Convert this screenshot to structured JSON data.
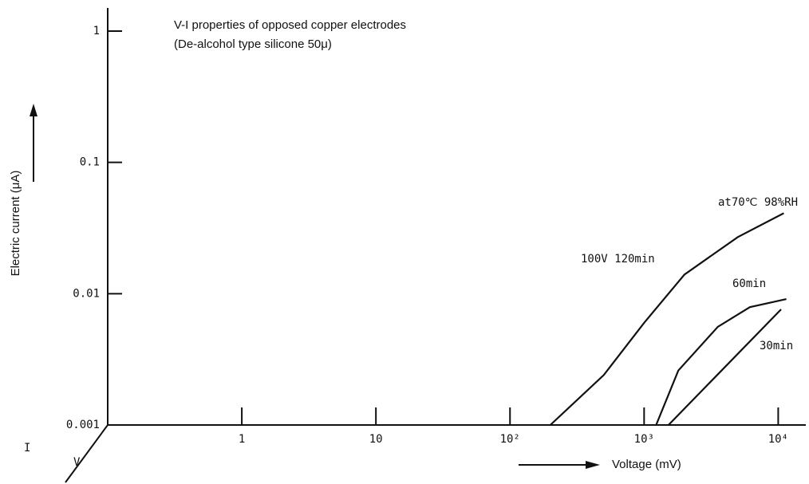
{
  "chart_data": {
    "type": "line",
    "title": "V-I properties of opposed copper electrodes",
    "subtitle": "(De-alcohol type silicone 50μ)",
    "y_label": "Electric current (μA)",
    "x_label": "Voltage (mV)",
    "annotations": [
      "at70℃ 98%RH",
      "I",
      "V"
    ],
    "xscale": "log",
    "yscale": "log",
    "xlim": [
      0.1,
      15000
    ],
    "ylim": [
      0.001,
      1.5
    ],
    "xticks": [
      1,
      10,
      {
        "value": 100,
        "label": "10²"
      },
      {
        "value": 1000,
        "label": "10³"
      },
      {
        "value": 10000,
        "label": "10⁴"
      }
    ],
    "yticks": [
      0.001,
      0.01,
      0.1,
      1
    ],
    "series": [
      {
        "name": "100V 120min",
        "color": "#111111",
        "x": [
          200,
          500,
          1000,
          2000,
          5000,
          11000
        ],
        "values": [
          0.001,
          0.0024,
          0.006,
          0.014,
          0.027,
          0.041
        ]
      },
      {
        "name": "60min",
        "color": "#111111",
        "x": [
          1230,
          1800,
          3550,
          6150,
          11500
        ],
        "values": [
          0.001,
          0.0026,
          0.0056,
          0.0079,
          0.0091
        ]
      },
      {
        "name": "30min",
        "color": "#111111",
        "x": [
          1520,
          10500
        ],
        "values": [
          0.001,
          0.0076
        ]
      }
    ]
  }
}
